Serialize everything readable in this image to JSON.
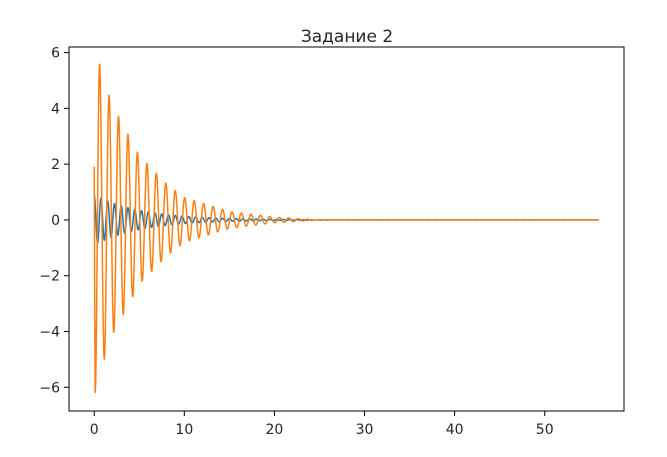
{
  "chart_data": {
    "type": "line",
    "title": "Задание 2",
    "xlabel": "",
    "ylabel": "",
    "xlim": [
      -2.8,
      58.8
    ],
    "ylim": [
      -6.85,
      6.2
    ],
    "xticks": [
      0,
      10,
      20,
      30,
      40,
      50
    ],
    "xtick_labels": [
      "0",
      "10",
      "20",
      "30",
      "40",
      "50"
    ],
    "yticks": [
      -6,
      -4,
      -2,
      0,
      2,
      4,
      6
    ],
    "ytick_labels": [
      "−6",
      "−4",
      "−2",
      "0",
      "2",
      "4",
      "6"
    ],
    "grid": false,
    "legend": "none",
    "x_range": [
      0,
      56
    ],
    "series": [
      {
        "color": "#1f77b4",
        "description": "damped oscillation, amplitude ~0.9 at x=0 decaying to 0 by x≈15",
        "peaks": [
          [
            0.1,
            0.9
          ],
          [
            1.2,
            0.8
          ],
          [
            2.5,
            0.7
          ],
          [
            5,
            0.5
          ],
          [
            10,
            0.2
          ],
          [
            15,
            0.05
          ],
          [
            20,
            0.0
          ],
          [
            56,
            0.0
          ]
        ]
      },
      {
        "color": "#ff7f0e",
        "description": "damped oscillation, max ~5.6 near x=0.6, min ~-6.2 near x=0.1, decaying to 0 by x≈25",
        "peaks": [
          [
            0.0,
            1.9
          ],
          [
            0.1,
            -6.2
          ],
          [
            0.6,
            5.6
          ],
          [
            1.1,
            -5.0
          ],
          [
            1.6,
            4.5
          ],
          [
            2.2,
            -4.0
          ],
          [
            2.7,
            3.7
          ],
          [
            5,
            2.3
          ],
          [
            8,
            1.3
          ],
          [
            10,
            0.8
          ],
          [
            15,
            0.3
          ],
          [
            20,
            0.1
          ],
          [
            25,
            0.0
          ],
          [
            56,
            0.0
          ]
        ]
      }
    ]
  }
}
